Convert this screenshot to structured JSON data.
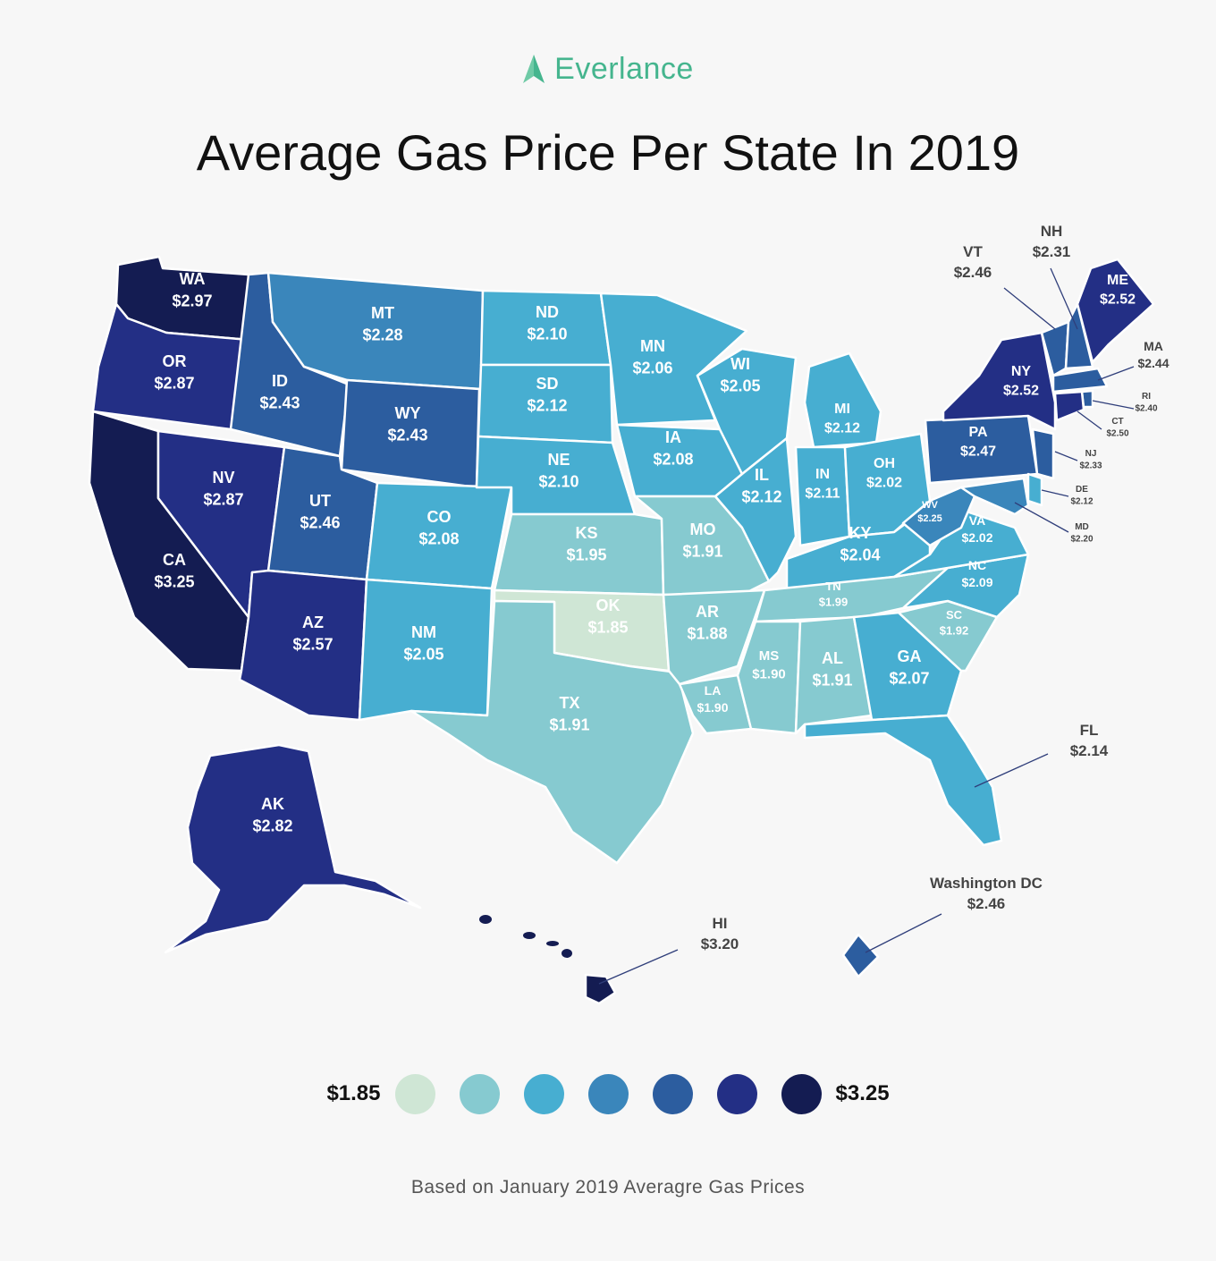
{
  "brand": {
    "name": "Everlance",
    "icon": "everlance-logo-icon",
    "color": "#45b58e"
  },
  "title": "Average Gas Price Per State In 2019",
  "footnote": "Based on January 2019 Averagre Gas Prices",
  "legend": {
    "min_label": "$1.85",
    "max_label": "$3.25",
    "colors": [
      "#cfe6d5",
      "#86cad0",
      "#47aed1",
      "#3a86bb",
      "#2c5d9f",
      "#232f85",
      "#141c52"
    ]
  },
  "states": [
    {
      "code": "WA",
      "price": "$2.97",
      "value": 2.97
    },
    {
      "code": "OR",
      "price": "$2.87",
      "value": 2.87
    },
    {
      "code": "CA",
      "price": "$3.25",
      "value": 3.25
    },
    {
      "code": "NV",
      "price": "$2.87",
      "value": 2.87
    },
    {
      "code": "ID",
      "price": "$2.43",
      "value": 2.43
    },
    {
      "code": "MT",
      "price": "$2.28",
      "value": 2.28
    },
    {
      "code": "WY",
      "price": "$2.43",
      "value": 2.43
    },
    {
      "code": "UT",
      "price": "$2.46",
      "value": 2.46
    },
    {
      "code": "AZ",
      "price": "$2.57",
      "value": 2.57
    },
    {
      "code": "CO",
      "price": "$2.08",
      "value": 2.08
    },
    {
      "code": "NM",
      "price": "$2.05",
      "value": 2.05
    },
    {
      "code": "ND",
      "price": "$2.10",
      "value": 2.1
    },
    {
      "code": "SD",
      "price": "$2.12",
      "value": 2.12
    },
    {
      "code": "NE",
      "price": "$2.10",
      "value": 2.1
    },
    {
      "code": "KS",
      "price": "$1.95",
      "value": 1.95
    },
    {
      "code": "OK",
      "price": "$1.85",
      "value": 1.85
    },
    {
      "code": "TX",
      "price": "$1.91",
      "value": 1.91
    },
    {
      "code": "MN",
      "price": "$2.06",
      "value": 2.06
    },
    {
      "code": "IA",
      "price": "$2.08",
      "value": 2.08
    },
    {
      "code": "MO",
      "price": "$1.91",
      "value": 1.91
    },
    {
      "code": "AR",
      "price": "$1.88",
      "value": 1.88
    },
    {
      "code": "LA",
      "price": "$1.90",
      "value": 1.9
    },
    {
      "code": "WI",
      "price": "$2.05",
      "value": 2.05
    },
    {
      "code": "IL",
      "price": "$2.12",
      "value": 2.12
    },
    {
      "code": "MI",
      "price": "$2.12",
      "value": 2.12
    },
    {
      "code": "IN",
      "price": "$2.11",
      "value": 2.11
    },
    {
      "code": "OH",
      "price": "$2.02",
      "value": 2.02
    },
    {
      "code": "KY",
      "price": "$2.04",
      "value": 2.04
    },
    {
      "code": "TN",
      "price": "$1.99",
      "value": 1.99
    },
    {
      "code": "MS",
      "price": "$1.90",
      "value": 1.9
    },
    {
      "code": "AL",
      "price": "$1.91",
      "value": 1.91
    },
    {
      "code": "GA",
      "price": "$2.07",
      "value": 2.07
    },
    {
      "code": "FL",
      "price": "$2.14",
      "value": 2.14
    },
    {
      "code": "SC",
      "price": "$1.92",
      "value": 1.92
    },
    {
      "code": "NC",
      "price": "$2.09",
      "value": 2.09
    },
    {
      "code": "VA",
      "price": "$2.02",
      "value": 2.02
    },
    {
      "code": "WV",
      "price": "$2.25",
      "value": 2.25
    },
    {
      "code": "PA",
      "price": "$2.47",
      "value": 2.47
    },
    {
      "code": "NY",
      "price": "$2.52",
      "value": 2.52
    },
    {
      "code": "VT",
      "price": "$2.46",
      "value": 2.46
    },
    {
      "code": "NH",
      "price": "$2.31",
      "value": 2.31
    },
    {
      "code": "ME",
      "price": "$2.52",
      "value": 2.52
    },
    {
      "code": "MA",
      "price": "$2.44",
      "value": 2.44
    },
    {
      "code": "RI",
      "price": "$2.40",
      "value": 2.4
    },
    {
      "code": "CT",
      "price": "$2.50",
      "value": 2.5
    },
    {
      "code": "NJ",
      "price": "$2.33",
      "value": 2.33
    },
    {
      "code": "DE",
      "price": "$2.12",
      "value": 2.12
    },
    {
      "code": "MD",
      "price": "$2.20",
      "value": 2.2
    },
    {
      "code": "AK",
      "price": "$2.82",
      "value": 2.82
    },
    {
      "code": "HI",
      "price": "$3.20",
      "value": 3.2
    },
    {
      "code": "Washington DC",
      "price": "$2.46",
      "value": 2.46
    }
  ]
}
